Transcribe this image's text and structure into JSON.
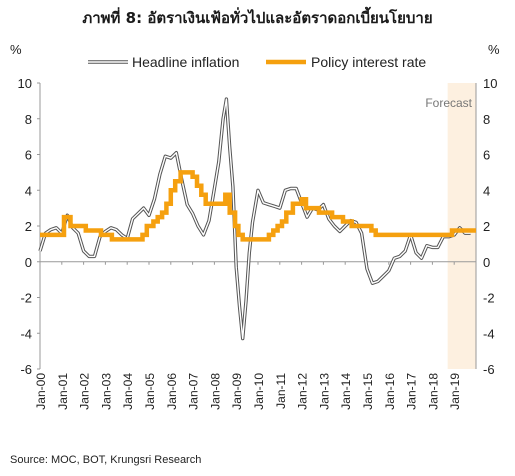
{
  "chart_data": {
    "type": "line",
    "title": "ภาพที่ 8: อัตราเงินเฟ้อทั่วไปและอัตราดอกเบี้ยนโยบาย",
    "y_unit_left": "%",
    "y_unit_right": "%",
    "source": "Source: MOC, BOT, Krungsri Research",
    "ylim": [
      -6,
      10
    ],
    "yticks": [
      "-6",
      "-4",
      "-2",
      "0",
      "2",
      "4",
      "6",
      "8",
      "10"
    ],
    "xlim": [
      2000.0,
      2020.0
    ],
    "x_tick_labels": [
      "Jan-00",
      "Jan-01",
      "Jan-02",
      "Jan-03",
      "Jan-04",
      "Jan-05",
      "Jan-06",
      "Jan-07",
      "Jan-08",
      "Jan-09",
      "Jan-10",
      "Jan-11",
      "Jan-12",
      "Jan-13",
      "Jan-14",
      "Jan-15",
      "Jan-16",
      "Jan-17",
      "Jan-18",
      "Jan-19"
    ],
    "forecast": {
      "label": "Forecast",
      "start": 2018.7,
      "end": 2020.0,
      "color": "#fdf0e0"
    },
    "legend_position": "top",
    "grid": false,
    "series": [
      {
        "name": "Headline inflation",
        "style": "double-line",
        "color": "#555555",
        "x": [
          2000.0,
          2000.25,
          2000.5,
          2000.75,
          2001.0,
          2001.25,
          2001.5,
          2001.75,
          2002.0,
          2002.25,
          2002.5,
          2002.75,
          2003.0,
          2003.25,
          2003.5,
          2003.75,
          2004.0,
          2004.25,
          2004.5,
          2004.75,
          2005.0,
          2005.25,
          2005.5,
          2005.75,
          2006.0,
          2006.25,
          2006.5,
          2006.75,
          2007.0,
          2007.25,
          2007.5,
          2007.75,
          2008.0,
          2008.2,
          2008.4,
          2008.55,
          2008.7,
          2008.85,
          2009.0,
          2009.15,
          2009.3,
          2009.45,
          2009.6,
          2009.75,
          2010.0,
          2010.25,
          2010.5,
          2010.75,
          2011.0,
          2011.25,
          2011.5,
          2011.75,
          2012.0,
          2012.25,
          2012.5,
          2012.75,
          2013.0,
          2013.25,
          2013.5,
          2013.75,
          2014.0,
          2014.25,
          2014.5,
          2014.75,
          2015.0,
          2015.25,
          2015.5,
          2015.75,
          2016.0,
          2016.25,
          2016.5,
          2016.75,
          2017.0,
          2017.25,
          2017.5,
          2017.75,
          2018.0,
          2018.25,
          2018.5,
          2018.75,
          2019.0,
          2019.25,
          2019.5,
          2019.75
        ],
        "y": [
          0.6,
          1.6,
          1.8,
          1.9,
          1.6,
          2.6,
          1.9,
          1.6,
          0.6,
          0.3,
          0.3,
          1.4,
          1.7,
          1.9,
          1.8,
          1.5,
          1.3,
          2.4,
          2.7,
          3.0,
          2.6,
          3.5,
          4.9,
          5.9,
          5.8,
          6.1,
          4.6,
          3.2,
          2.7,
          2.0,
          1.5,
          2.3,
          4.1,
          5.6,
          8.0,
          9.1,
          6.4,
          4.2,
          -0.3,
          -2.5,
          -4.3,
          -2.2,
          0.5,
          2.2,
          4.0,
          3.3,
          3.2,
          3.1,
          3.0,
          4.0,
          4.1,
          4.1,
          3.3,
          2.5,
          3.0,
          2.9,
          3.2,
          2.4,
          2.0,
          1.7,
          2.0,
          2.3,
          2.2,
          1.6,
          -0.4,
          -1.2,
          -1.1,
          -0.8,
          -0.5,
          0.2,
          0.3,
          0.6,
          1.5,
          0.5,
          0.2,
          0.9,
          0.8,
          0.8,
          1.4,
          1.4,
          1.5,
          1.9,
          1.6,
          1.6
        ]
      },
      {
        "name": "Policy interest rate",
        "style": "thick-step",
        "color": "#f5a00f",
        "x": [
          2000.0,
          2000.6,
          2000.6,
          2001.1,
          2001.1,
          2001.4,
          2001.4,
          2002.1,
          2002.1,
          2002.8,
          2002.8,
          2003.3,
          2003.3,
          2004.7,
          2004.7,
          2004.9,
          2004.9,
          2005.2,
          2005.2,
          2005.4,
          2005.4,
          2005.6,
          2005.6,
          2005.8,
          2005.8,
          2006.0,
          2006.0,
          2006.2,
          2006.2,
          2006.45,
          2006.45,
          2007.0,
          2007.0,
          2007.2,
          2007.2,
          2007.4,
          2007.4,
          2007.6,
          2007.6,
          2008.5,
          2008.5,
          2008.7,
          2008.7,
          2008.95,
          2008.95,
          2009.1,
          2009.1,
          2009.3,
          2009.3,
          2010.5,
          2010.5,
          2010.7,
          2010.7,
          2010.9,
          2010.9,
          2011.1,
          2011.1,
          2011.3,
          2011.3,
          2011.6,
          2011.6,
          2012.0,
          2012.0,
          2012.2,
          2012.2,
          2012.8,
          2012.8,
          2013.4,
          2013.4,
          2013.9,
          2013.9,
          2014.3,
          2014.3,
          2015.2,
          2015.2,
          2015.4,
          2015.4,
          2018.9,
          2018.9,
          2020.0
        ],
        "y": [
          1.5,
          1.5,
          1.5,
          1.5,
          2.5,
          2.5,
          2.0,
          2.0,
          1.75,
          1.75,
          1.5,
          1.5,
          1.25,
          1.25,
          1.5,
          1.5,
          2.0,
          2.0,
          2.25,
          2.25,
          2.5,
          2.5,
          2.75,
          2.75,
          3.25,
          3.25,
          4.0,
          4.0,
          4.5,
          4.5,
          5.0,
          5.0,
          4.75,
          4.75,
          4.25,
          4.25,
          3.75,
          3.75,
          3.25,
          3.25,
          3.75,
          3.75,
          2.75,
          2.75,
          2.0,
          2.0,
          1.5,
          1.5,
          1.25,
          1.25,
          1.5,
          1.5,
          1.75,
          1.75,
          2.0,
          2.0,
          2.25,
          2.25,
          2.75,
          2.75,
          3.25,
          3.25,
          3.5,
          3.5,
          3.0,
          3.0,
          2.75,
          2.75,
          2.5,
          2.5,
          2.25,
          2.25,
          2.0,
          2.0,
          1.75,
          1.75,
          1.5,
          1.5,
          1.75,
          1.75
        ]
      }
    ]
  }
}
